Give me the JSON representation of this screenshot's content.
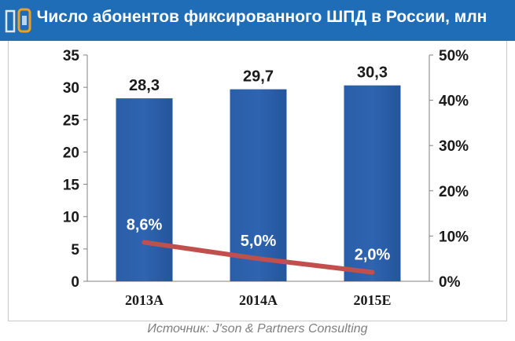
{
  "header": {
    "title": "Число абонентов фиксированного ШПД в России, млн"
  },
  "chart_data": {
    "type": "bar",
    "title": "Число абонентов фиксированного ШПД в России, млн",
    "categories": [
      "2013А",
      "2014А",
      "2015Е"
    ],
    "series": [
      {
        "type": "bar",
        "axis": "left",
        "values": [
          28.3,
          29.7,
          30.3
        ],
        "labels": [
          "28,3",
          "29,7",
          "30,3"
        ],
        "color": "#2e64b0"
      },
      {
        "type": "line",
        "axis": "right",
        "values": [
          8.6,
          5.0,
          2.0
        ],
        "labels": [
          "8,6%",
          "5,0%",
          "2,0%"
        ],
        "color": "#c0504d"
      }
    ],
    "ylim": [
      0,
      35
    ],
    "yticks": [
      0,
      5,
      10,
      15,
      20,
      25,
      30,
      35
    ],
    "ytick_labels": [
      "0",
      "5",
      "10",
      "15",
      "20",
      "25",
      "30",
      "35"
    ],
    "y2lim": [
      0,
      50
    ],
    "y2ticks": [
      0,
      10,
      20,
      30,
      40,
      50
    ],
    "y2tick_labels": [
      "0%",
      "10%",
      "20%",
      "30%",
      "40%",
      "50%"
    ],
    "grid": false,
    "legend": "none"
  },
  "footer": {
    "source": "Источник: J'son & Partners Consulting"
  }
}
